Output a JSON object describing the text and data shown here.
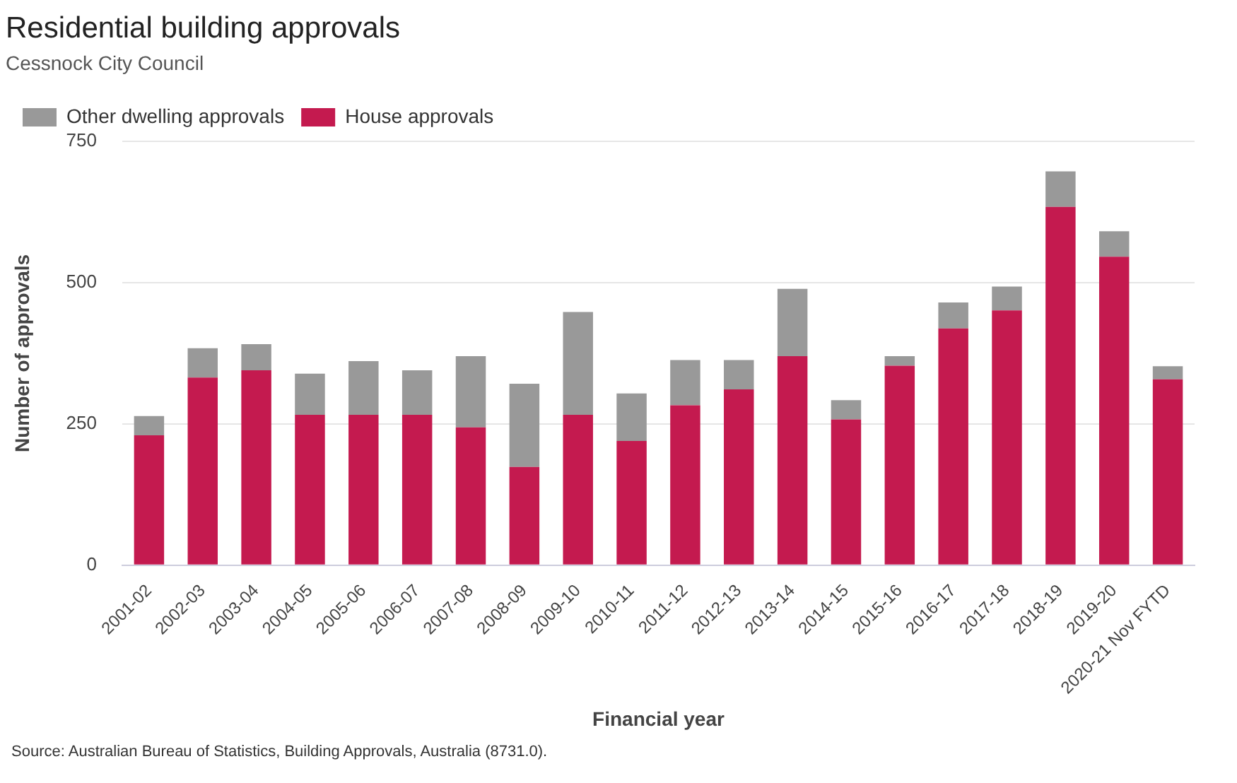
{
  "chart_data": {
    "type": "bar",
    "title": "Residential building approvals",
    "subtitle": "Cessnock City Council",
    "xlabel": "Financial year",
    "ylabel": "Number of approvals",
    "categories": [
      "2001-02",
      "2002-03",
      "2003-04",
      "2004-05",
      "2005-06",
      "2006-07",
      "2007-08",
      "2008-09",
      "2009-10",
      "2010-11",
      "2011-12",
      "2012-13",
      "2013-14",
      "2014-15",
      "2015-16",
      "2016-17",
      "2017-18",
      "2018-19",
      "2019-20",
      "2020-21 Nov FYTD"
    ],
    "series": [
      {
        "name": "House approvals",
        "color": "#c41a4f",
        "values": [
          230,
          332,
          345,
          266,
          266,
          266,
          244,
          174,
          266,
          220,
          283,
          311,
          370,
          258,
          353,
          419,
          451,
          634,
          546,
          329
        ]
      },
      {
        "name": "Other dwelling approvals",
        "color": "#999999",
        "values": [
          34,
          52,
          46,
          73,
          95,
          79,
          126,
          147,
          182,
          84,
          80,
          52,
          119,
          34,
          17,
          46,
          42,
          63,
          45,
          23
        ]
      }
    ],
    "stacked": true,
    "ylim": [
      0,
      750
    ],
    "yticks": [
      0,
      250,
      500,
      750
    ],
    "grid": "y",
    "legend": "top left",
    "annotations": [
      "Source: Australian Bureau of Statistics, Building Approvals, Australia (8731.0)."
    ]
  }
}
